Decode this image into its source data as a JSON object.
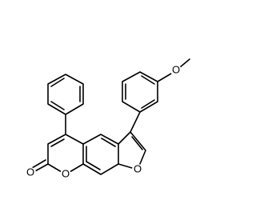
{
  "atoms": [
    {
      "label": "O"
    },
    {
      "label": "O"
    },
    {
      "label": "O"
    },
    {
      "label": "O"
    }
  ]
}
